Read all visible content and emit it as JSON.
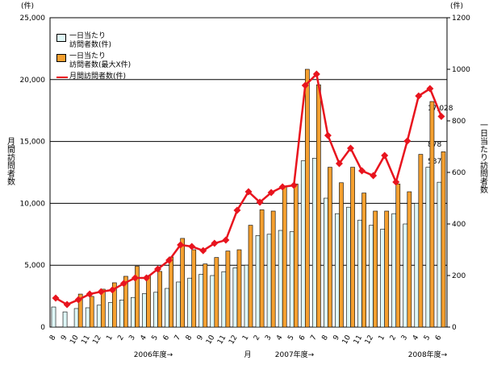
{
  "chart_data": {
    "type": "bar_line",
    "y_label": "月間訪問者数",
    "y2_label": "一日当たり訪問者数",
    "y_unit": "(件)",
    "y2_unit": "(件)",
    "categories": [
      "8",
      "9",
      "10",
      "11",
      "12",
      "1",
      "2",
      "3",
      "4",
      "5",
      "6",
      "7",
      "8",
      "9",
      "10",
      "11",
      "12",
      "1",
      "2",
      "3",
      "4",
      "5",
      "6",
      "7",
      "8",
      "9",
      "10",
      "11",
      "12",
      "1",
      "2",
      "3",
      "4",
      "5",
      "6"
    ],
    "series": [
      {
        "name": "一日当たり\n訪問者数(件)",
        "type": "bar",
        "axis": "y2",
        "color": "#dff8f8",
        "values": [
          78,
          59,
          72,
          75,
          85,
          95,
          105,
          115,
          130,
          135,
          150,
          175,
          190,
          205,
          200,
          215,
          230,
          240,
          355,
          360,
          375,
          370,
          645,
          655,
          500,
          440,
          465,
          415,
          395,
          380,
          440,
          400,
          480,
          620,
          562
        ]
      },
      {
        "name": "一日当たり\n訪問者数(最大X件)",
        "type": "bar",
        "axis": "y2",
        "color": "#f5a030",
        "values": [
          null,
          null,
          128,
          119,
          147,
          172,
          197,
          236,
          200,
          216,
          272,
          344,
          300,
          245,
          270,
          295,
          300,
          395,
          455,
          450,
          545,
          555,
          1000,
          940,
          620,
          560,
          620,
          520,
          450,
          450,
          555,
          525,
          670,
          875,
          680
        ]
      },
      {
        "name": "月間訪問者数(件)",
        "type": "line",
        "axis": "y",
        "color": "#e8141e",
        "values": [
          2340,
          1820,
          2210,
          2670,
          2860,
          3000,
          3520,
          3970,
          3970,
          4690,
          5400,
          6640,
          6510,
          6180,
          6770,
          7030,
          9440,
          10940,
          10090,
          10870,
          11330,
          11460,
          19530,
          20440,
          15490,
          13220,
          14450,
          12630,
          12240,
          13870,
          11720,
          15040,
          18680,
          19270,
          17028
        ]
      }
    ],
    "ylim": [
      0,
      25000
    ],
    "yticks": [
      0,
      {
        "value": 5000,
        "label": "5,000"
      },
      {
        "value": 10000,
        "label": "10,000"
      },
      {
        "value": 15000,
        "label": "15,000"
      },
      {
        "value": 20000,
        "label": "20,000"
      },
      {
        "value": 25000,
        "label": "25,000"
      }
    ],
    "y2lim": [
      0,
      1200
    ],
    "y2ticks": [
      0,
      200,
      400,
      600,
      800,
      1000,
      1200
    ],
    "grid": true,
    "annotations": [
      "17,028",
      "878",
      "587",
      "2006年度→",
      "月",
      "2007年度→",
      "2008年度→"
    ]
  }
}
